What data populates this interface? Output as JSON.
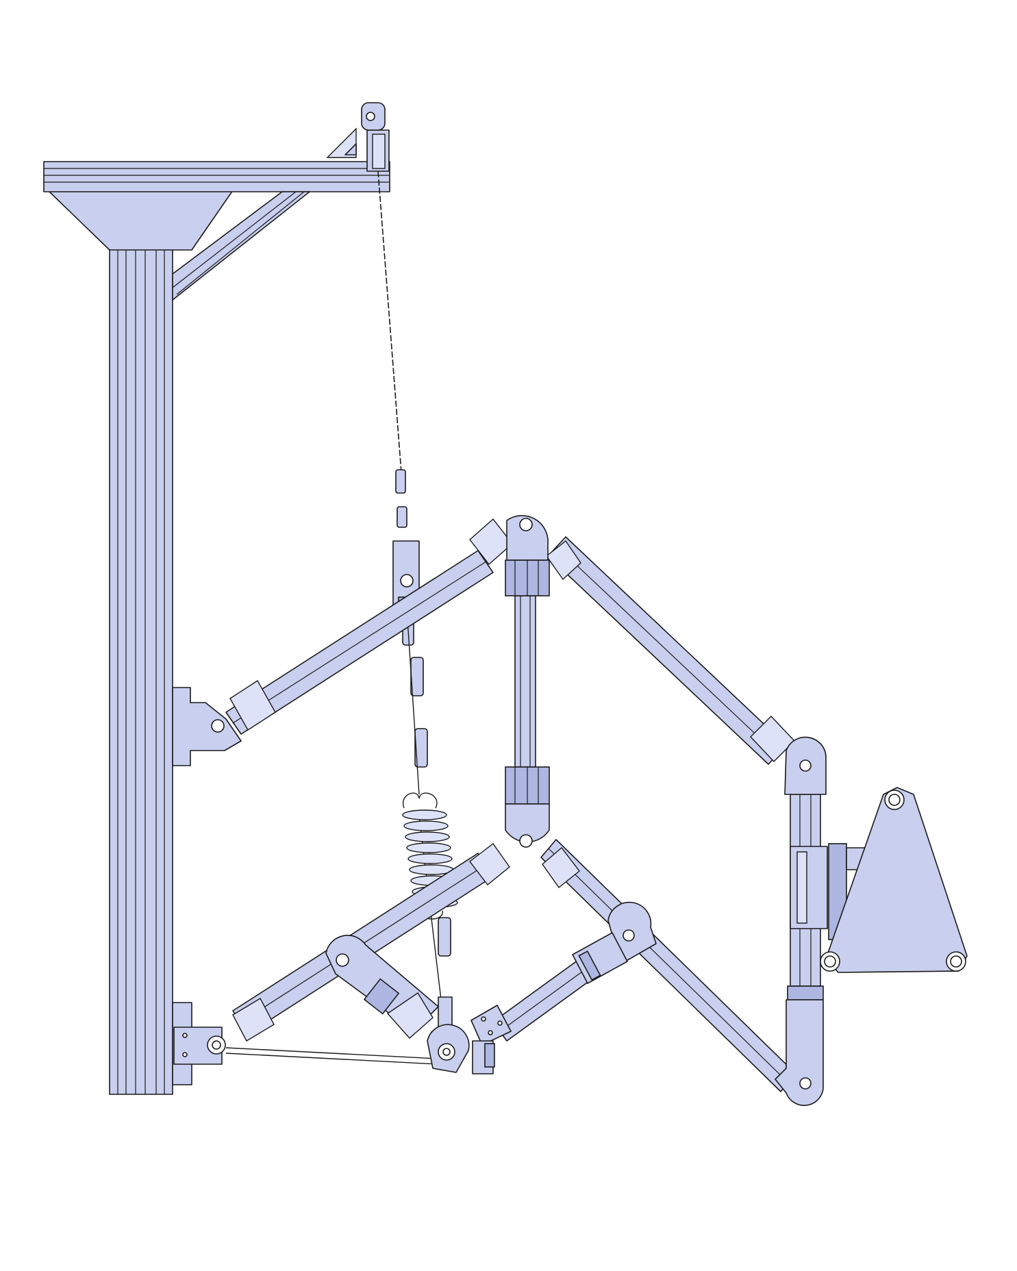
{
  "figure": {
    "description_visible_text": "",
    "colors": {
      "part_fill": "#c9cfee",
      "part_dark": "#aeb6e2",
      "part_light": "#dde2f8",
      "outline": "#1a1a1a",
      "background": "#ffffff"
    },
    "components": [
      "vertical-extrusion-post",
      "top-crossbar",
      "diagonal-brace",
      "top-pulley",
      "suspension-cable",
      "extension-spring",
      "upper-link-arm",
      "lower-link-arm",
      "vertical-strut",
      "right-upright",
      "triangular-end-plate"
    ]
  }
}
